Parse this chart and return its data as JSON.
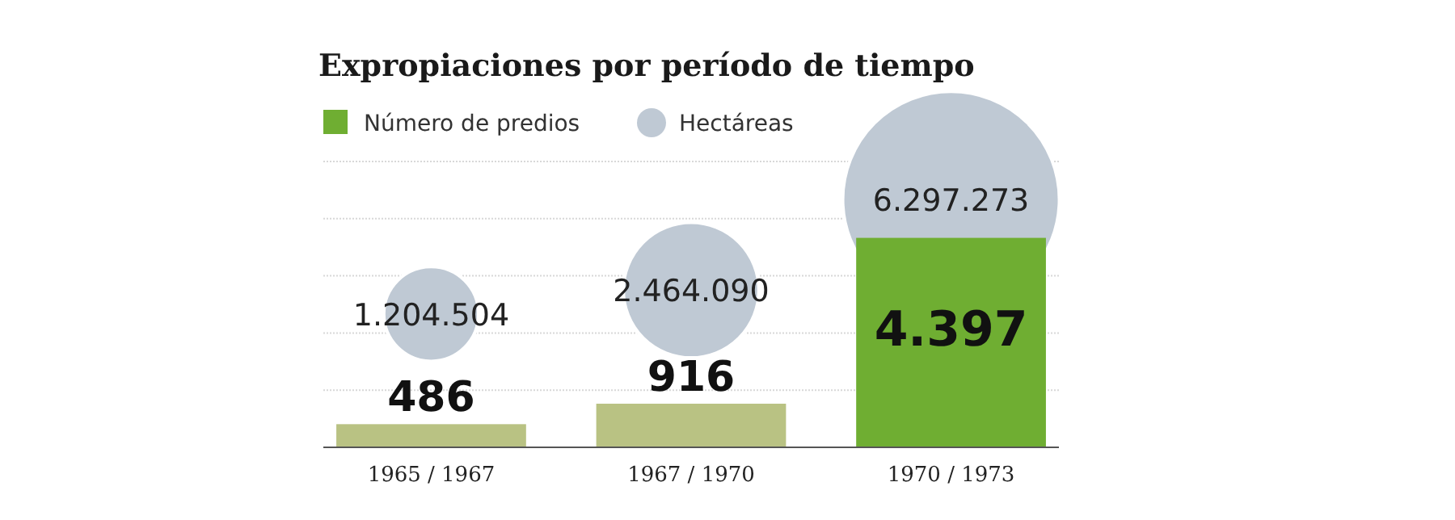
{
  "chart_data": {
    "type": "bar",
    "title": "Expropiaciones por período de tiempo",
    "categories": [
      "1965 / 1967",
      "1967 / 1970",
      "1970 / 1973"
    ],
    "series": [
      {
        "name": "Número de predios",
        "colors": [
          "#b9c283",
          "#b9c283",
          "#6fae32"
        ],
        "values": [
          486,
          916,
          4397
        ],
        "value_labels": [
          "486",
          "916",
          "4.397"
        ]
      },
      {
        "name": "Hectáreas",
        "type": "bubble",
        "color": "#bfc9d4",
        "values": [
          2800,
          3300,
          5200
        ],
        "sizes": [
          1204504,
          2464090,
          6297273
        ],
        "value_labels": [
          "1.204.504",
          "2.464.090",
          "6.297.273"
        ]
      }
    ],
    "ylim": [
      0,
      6000
    ],
    "yticks": [
      {
        "value": 0,
        "label": null
      },
      {
        "value": 1200,
        "label": null
      },
      {
        "value": 2400,
        "label": null
      },
      {
        "value": 3600,
        "label": null
      },
      {
        "value": 4800,
        "label": null
      },
      {
        "value": 6000,
        "label": null
      }
    ],
    "grid": "y",
    "legend": "top left"
  }
}
